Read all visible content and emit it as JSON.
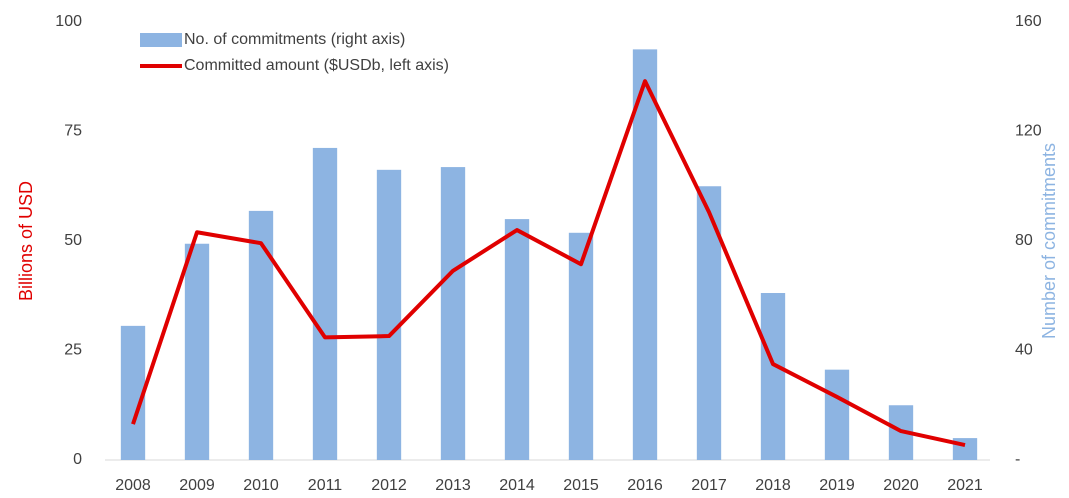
{
  "chart_data": {
    "type": "combo",
    "categories": [
      "2008",
      "2009",
      "2010",
      "2011",
      "2012",
      "2013",
      "2014",
      "2015",
      "2016",
      "2017",
      "2018",
      "2019",
      "2020",
      "2021"
    ],
    "series": [
      {
        "name": "No. of commitments (right axis)",
        "type": "bar",
        "axis": "y2",
        "color": "#8db4e2",
        "values": [
          49,
          79,
          91,
          114,
          106,
          107,
          88,
          83,
          150,
          100,
          61,
          33,
          20,
          8
        ]
      },
      {
        "name": "Committed amount ($USDb, left axis)",
        "type": "line",
        "axis": "y",
        "color": "#e00000",
        "values": [
          8.2,
          52,
          49.5,
          28,
          28.3,
          43.2,
          52.5,
          44.7,
          86.5,
          56.6,
          21.9,
          14.4,
          6.6,
          3.4
        ]
      }
    ],
    "ylabel": "Billions of USD",
    "y2label": "Number of commitments",
    "ylim": [
      0,
      100
    ],
    "yticks": [
      0,
      25,
      50,
      75,
      100
    ],
    "y2lim": [
      0,
      160
    ],
    "y2ticks": [
      {
        "value": 0,
        "label": "-"
      },
      40,
      80,
      120,
      160
    ],
    "grid": false,
    "legend": "top-left"
  }
}
